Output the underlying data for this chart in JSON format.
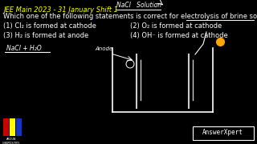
{
  "bg_color": "#000000",
  "header_text": "JEE Main 2023 - 31 January Shift 1",
  "header_color": "#ffff00",
  "header_fontsize": 6.0,
  "nacl_text": "NaCl   Solution",
  "nacl_fontsize": 5.5,
  "nacl_color": "#ffffff",
  "question_text": "Which one of the following statements is correct for electrolysis of brine solution?",
  "question_color": "#ffffff",
  "question_fontsize": 6.0,
  "options": [
    "(1) Cl₂ is formed at cathode",
    "(2) O₂ is formed at cathode",
    "(3) H₂ is formed at anode",
    "(4) OH⁻ is formed at cathode"
  ],
  "option_color": "#ffffff",
  "option_fontsize": 6.0,
  "answerxpert_text": "AnswerXpert",
  "answerxpert_color": "#ffffff",
  "answerxpert_fontsize": 5.5,
  "electrode_color": "#cccccc",
  "orange_dot_color": "#ffa500"
}
